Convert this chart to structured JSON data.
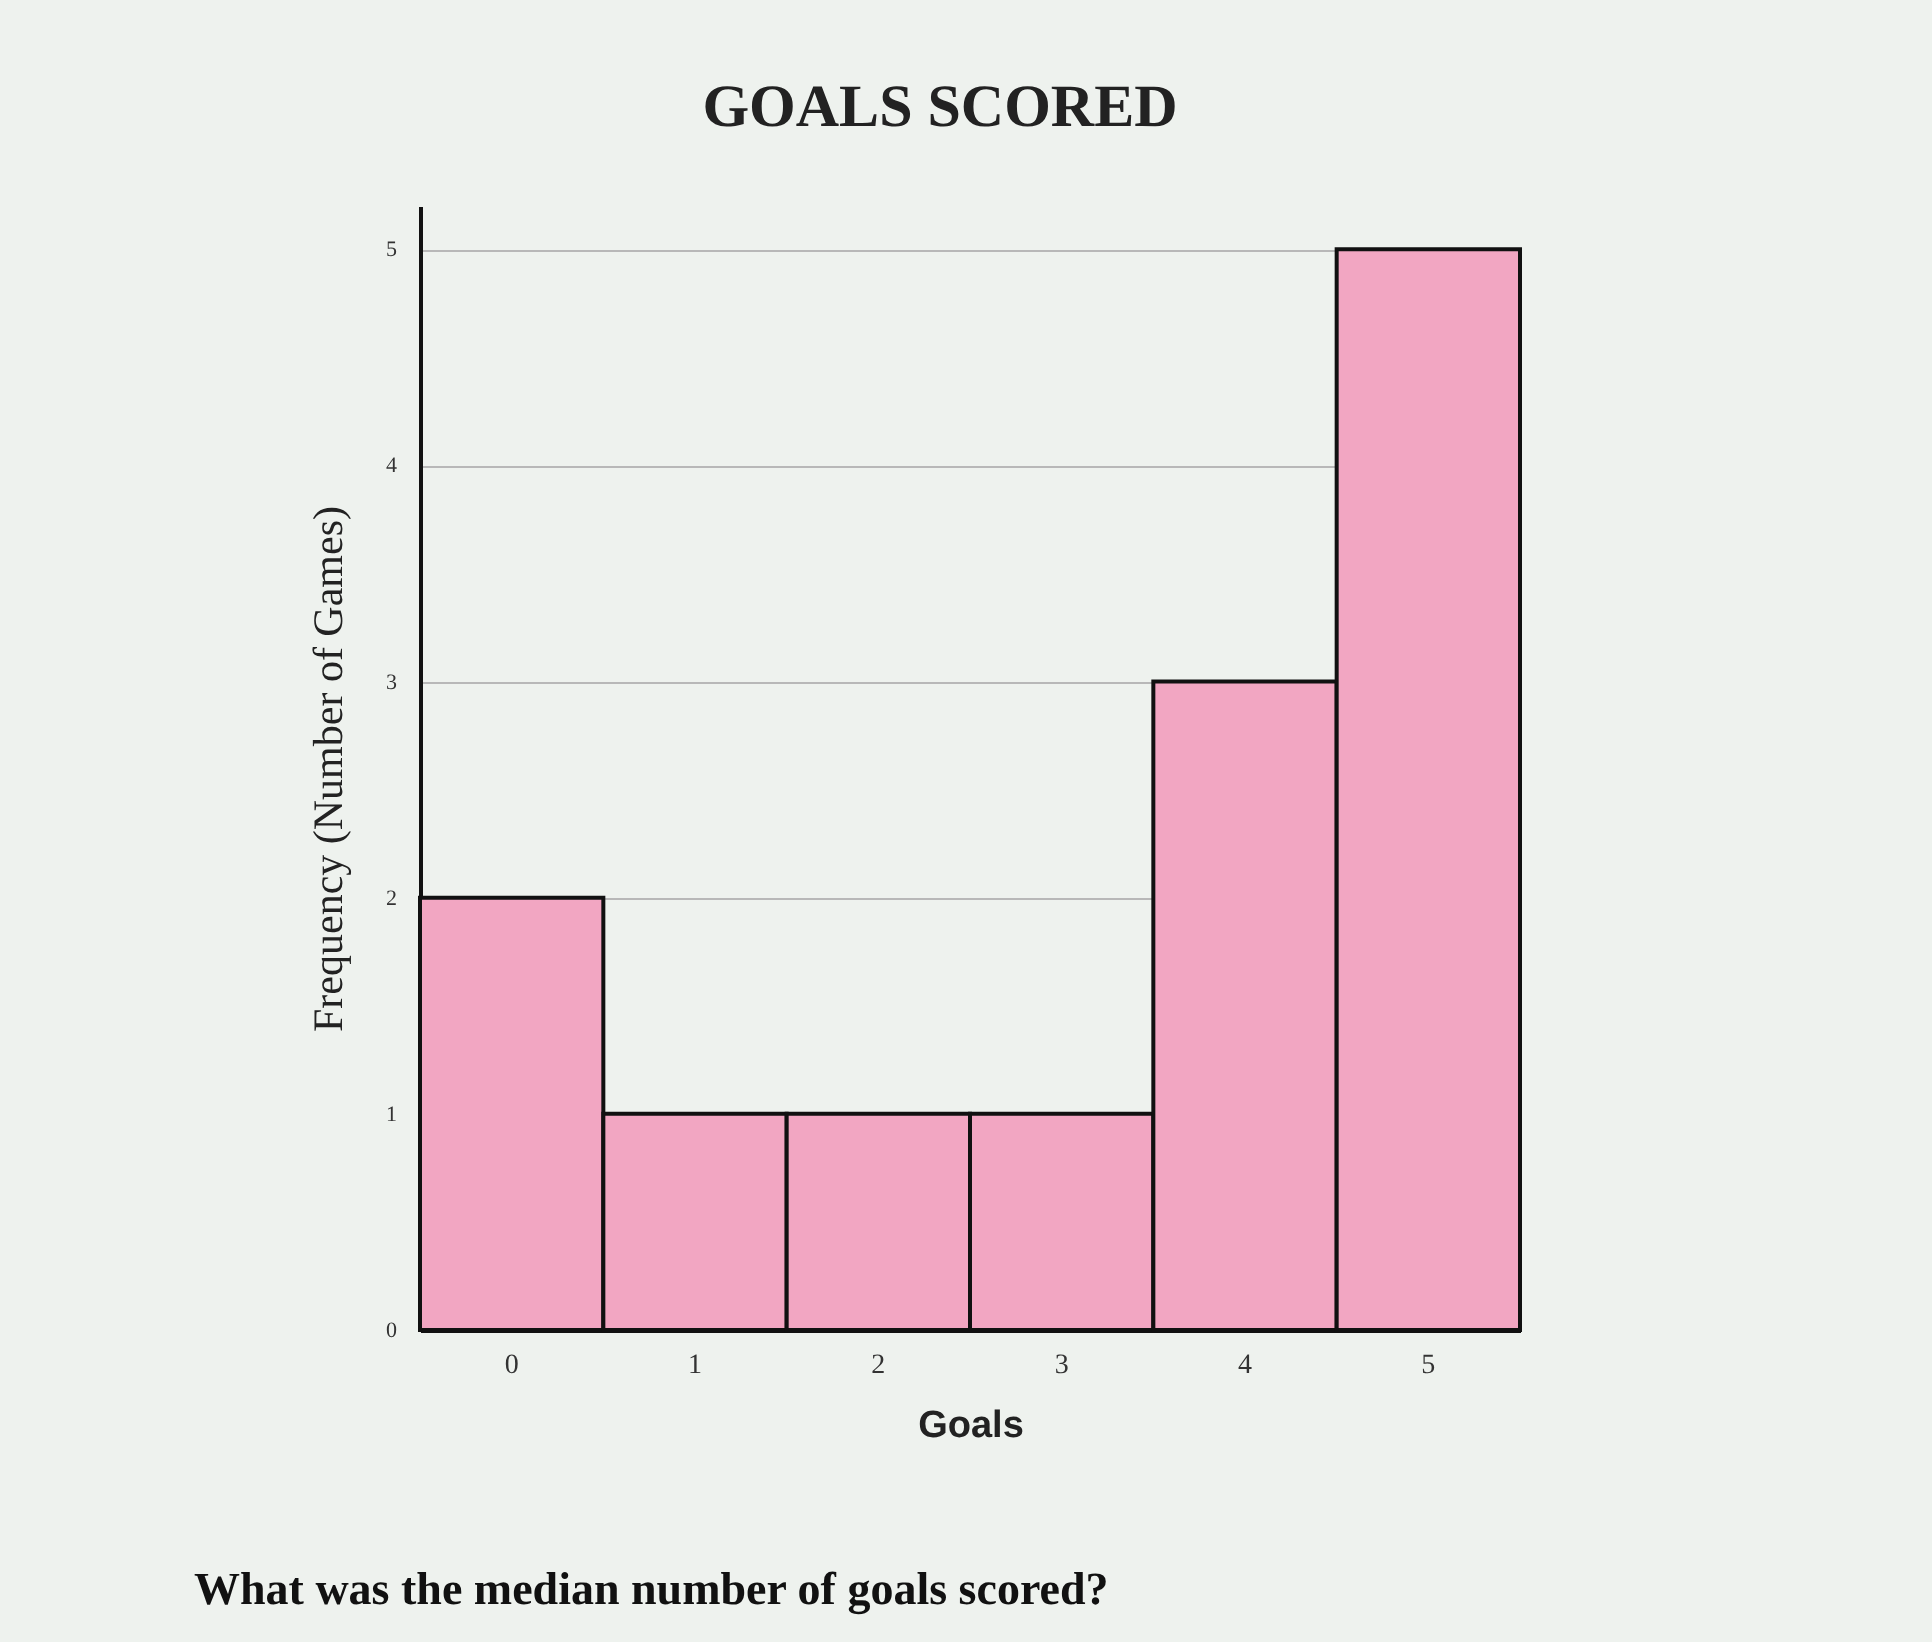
{
  "chart_data": {
    "type": "bar",
    "title": "GOALS SCORED",
    "xlabel": "Goals",
    "ylabel": "Frequency (Number of Games)",
    "categories": [
      "0",
      "1",
      "2",
      "3",
      "4",
      "5"
    ],
    "values": [
      2,
      1,
      1,
      1,
      3,
      5
    ],
    "color": "#f2a6c2",
    "ylim": [
      0,
      5.2
    ],
    "yticks": [
      0,
      1,
      2,
      3,
      4,
      5
    ],
    "grid": "y",
    "annotations": [
      "What was the median number of goals scored?"
    ]
  }
}
